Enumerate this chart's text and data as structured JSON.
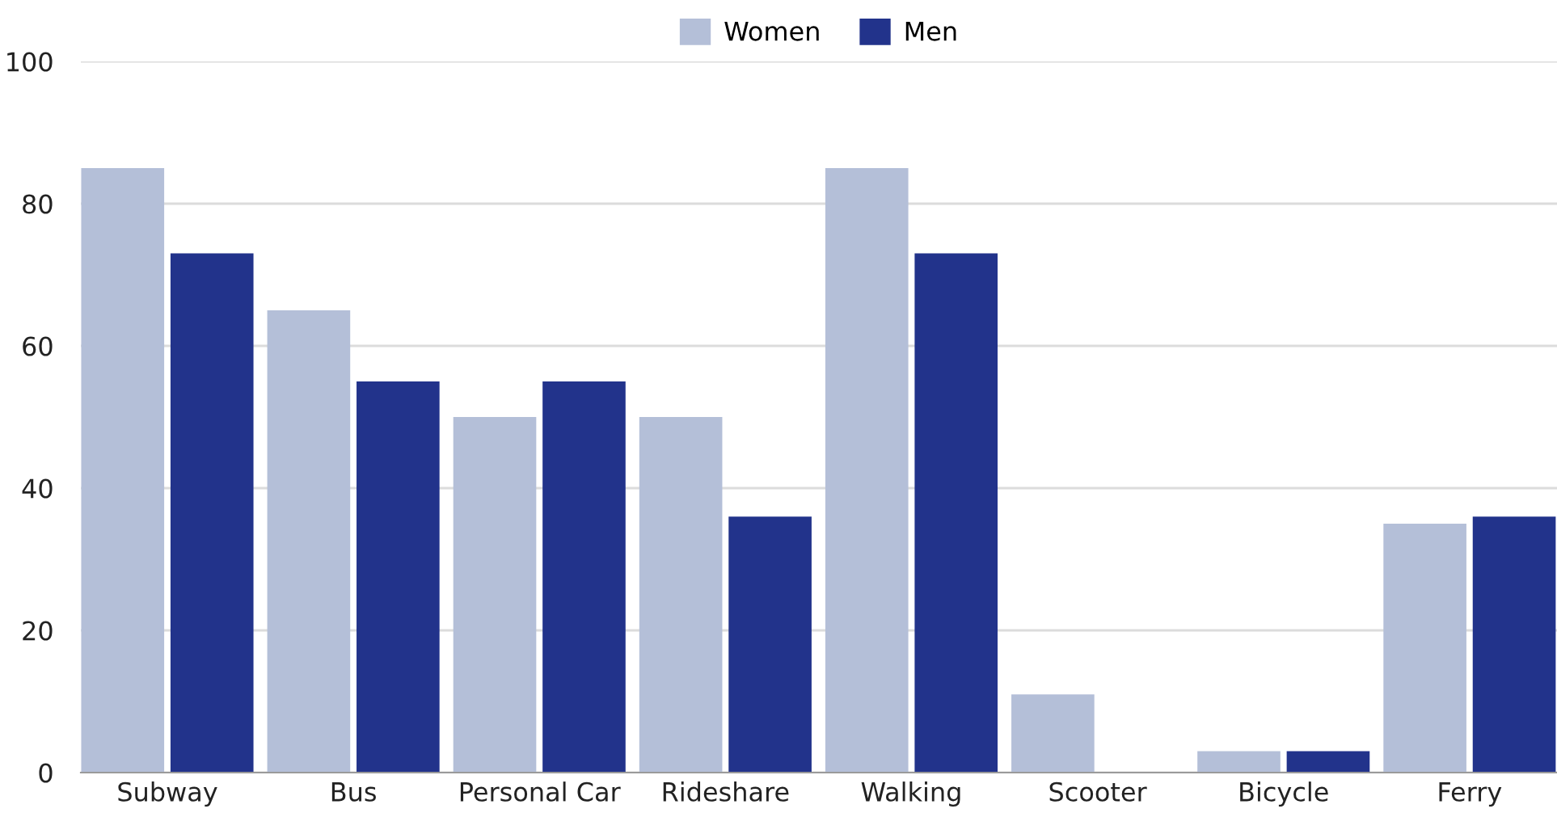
{
  "chart_data": {
    "type": "bar",
    "categories": [
      "Subway",
      "Bus",
      "Personal Car",
      "Rideshare",
      "Walking",
      "Scooter",
      "Bicycle",
      "Ferry"
    ],
    "series": [
      {
        "name": "Women",
        "color": "#b4bfd8",
        "values": [
          85,
          65,
          50,
          50,
          85,
          11,
          3,
          35
        ]
      },
      {
        "name": "Men",
        "color": "#22338b",
        "values": [
          73,
          55,
          55,
          36,
          73,
          null,
          3,
          36
        ]
      }
    ],
    "ylim": [
      0,
      100
    ],
    "yticks": [
      0,
      20,
      40,
      60,
      80,
      100
    ],
    "grid": "y",
    "legend": "top"
  }
}
